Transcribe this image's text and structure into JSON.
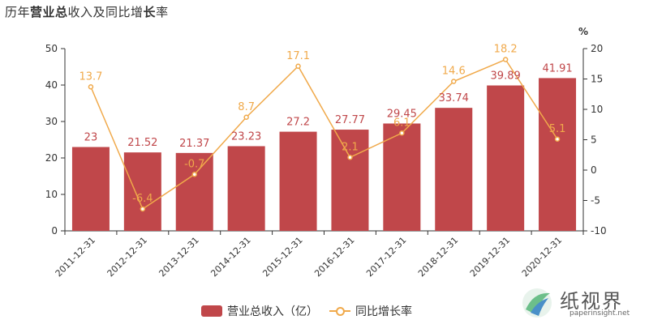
{
  "title": {
    "parts": [
      {
        "text": "历年",
        "bold": true
      },
      {
        "text": "营业总",
        "bold": true
      },
      {
        "text": "收入及同比增",
        "bold": false
      },
      {
        "text": "长",
        "bold": true
      },
      {
        "text": "率",
        "bold": false
      }
    ]
  },
  "right_axis_unit": "%",
  "colors": {
    "bar": "#C0474A",
    "bar_label": "#C0474A",
    "line": "#F0A94A",
    "axis": "#333333",
    "grid": "#E0E0E0"
  },
  "legend": [
    {
      "label": "营业总收入（亿）",
      "type": "bar"
    },
    {
      "label": "同比增长率",
      "type": "line"
    }
  ],
  "watermark": {
    "text": "纸视界",
    "url": "paperinsight.net"
  },
  "chart_data": {
    "type": "bar+line",
    "title": "历年营业总收入及同比增长率",
    "categories": [
      "2011-12-31",
      "2012-12-31",
      "2013-12-31",
      "2014-12-31",
      "2015-12-31",
      "2016-12-31",
      "2017-12-31",
      "2018-12-31",
      "2019-12-31",
      "2020-12-31"
    ],
    "series": [
      {
        "name": "营业总收入（亿）",
        "type": "bar",
        "axis": "left",
        "values": [
          23,
          21.52,
          21.37,
          23.23,
          27.2,
          27.77,
          29.45,
          33.74,
          39.89,
          41.91
        ]
      },
      {
        "name": "同比增长率",
        "type": "line",
        "axis": "right",
        "values": [
          13.7,
          -6.4,
          -0.7,
          8.7,
          17.1,
          2.1,
          6.1,
          14.6,
          18.2,
          5.1
        ]
      }
    ],
    "left_axis": {
      "ylim": [
        0,
        50
      ],
      "ticks": [
        0,
        10,
        20,
        30,
        40,
        50
      ]
    },
    "right_axis": {
      "ylim": [
        -10,
        20
      ],
      "ticks": [
        -10,
        -5,
        0,
        5,
        10,
        15,
        20
      ],
      "unit": "%"
    },
    "grid": false,
    "legend_position": "bottom-center"
  }
}
